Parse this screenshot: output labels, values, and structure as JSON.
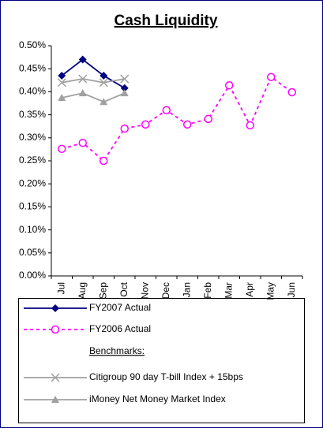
{
  "chart_data": {
    "type": "line",
    "title": "Cash Liquidity",
    "categories": [
      "Jul",
      "Aug",
      "Sep",
      "Oct",
      "Nov",
      "Dec",
      "Jan",
      "Feb",
      "Mar",
      "Apr",
      "May",
      "Jun"
    ],
    "ylim": [
      0,
      0.5
    ],
    "yticks": [
      {
        "value": 0,
        "label": "0.00%"
      },
      {
        "value": 0.05,
        "label": "0.05%"
      },
      {
        "value": 0.1,
        "label": "0.10%"
      },
      {
        "value": 0.15,
        "label": "0.15%"
      },
      {
        "value": 0.2,
        "label": "0.20%"
      },
      {
        "value": 0.25,
        "label": "0.25%"
      },
      {
        "value": 0.3,
        "label": "0.30%"
      },
      {
        "value": 0.35,
        "label": "0.35%"
      },
      {
        "value": 0.4,
        "label": "0.40%"
      },
      {
        "value": 0.45,
        "label": "0.45%"
      },
      {
        "value": 0.5,
        "label": "0.50%"
      }
    ],
    "grid": false,
    "legend_subheading": "Benchmarks:",
    "series": [
      {
        "name": "FY2007 Actual",
        "color": "#000080",
        "marker": "diamond",
        "dashed": false,
        "values": [
          0.435,
          0.47,
          0.435,
          0.408,
          null,
          null,
          null,
          null,
          null,
          null,
          null,
          null
        ]
      },
      {
        "name": "FY2006 Actual",
        "color": "#ff00ff",
        "marker": "circle",
        "dashed": true,
        "values": [
          0.276,
          0.289,
          0.25,
          0.32,
          0.329,
          0.36,
          0.329,
          0.341,
          0.414,
          0.327,
          0.432,
          0.399
        ]
      },
      {
        "name": "Citigroup 90 day T-bill Index + 15bps",
        "color": "#a0a0a0",
        "marker": "x",
        "dashed": false,
        "values": [
          0.42,
          0.428,
          0.42,
          0.428,
          null,
          null,
          null,
          null,
          null,
          null,
          null,
          null
        ]
      },
      {
        "name": "iMoney Net Money Market Index",
        "color": "#a0a0a0",
        "marker": "triangle",
        "dashed": false,
        "values": [
          0.387,
          0.397,
          0.378,
          0.397,
          null,
          null,
          null,
          null,
          null,
          null,
          null,
          null
        ]
      }
    ]
  }
}
